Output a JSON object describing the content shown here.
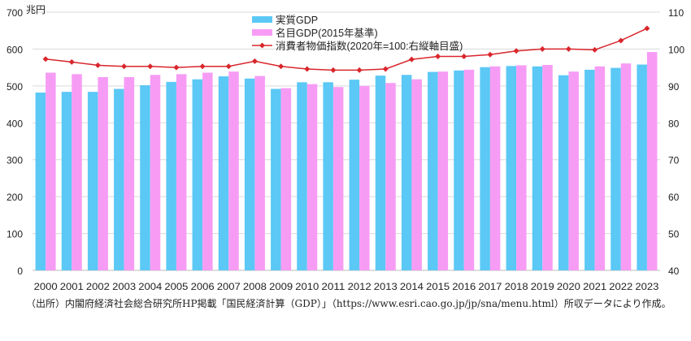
{
  "chart_data": {
    "type": "bar",
    "categories": [
      "2000",
      "2001",
      "2002",
      "2003",
      "2004",
      "2005",
      "2006",
      "2007",
      "2008",
      "2009",
      "2010",
      "2011",
      "2012",
      "2013",
      "2014",
      "2015",
      "2016",
      "2017",
      "2018",
      "2019",
      "2020",
      "2021",
      "2022",
      "2023"
    ],
    "series": [
      {
        "name": "実質GDP",
        "type": "bar",
        "axis": "left",
        "color": "#5bc8f5",
        "values": [
          482,
          484,
          484,
          492,
          502,
          511,
          518,
          526,
          520,
          492,
          510,
          510,
          517,
          528,
          530,
          538,
          542,
          551,
          554,
          553,
          529,
          544,
          549,
          558
        ]
      },
      {
        "name": "名目GDP(2015年基準)",
        "type": "bar",
        "axis": "left",
        "color": "#f79cf5",
        "values": [
          536,
          532,
          524,
          524,
          530,
          532,
          536,
          539,
          527,
          494,
          505,
          497,
          500,
          508,
          518,
          539,
          544,
          553,
          556,
          557,
          539,
          553,
          561,
          592
        ]
      },
      {
        "name": "消費者物価指数(2020年=100:右縦軸目盛)",
        "type": "line",
        "axis": "right",
        "color": "#d9262c",
        "values": [
          97.3,
          96.5,
          95.6,
          95.3,
          95.3,
          95.0,
          95.3,
          95.3,
          96.7,
          95.3,
          94.6,
          94.3,
          94.3,
          94.6,
          97.2,
          98.0,
          98.0,
          98.5,
          99.5,
          100.0,
          100.0,
          99.8,
          102.3,
          105.6
        ]
      }
    ],
    "ylabel": "兆円",
    "ylim": [
      0,
      700
    ],
    "yticks": [
      "0",
      "100",
      "200",
      "300",
      "400",
      "500",
      "600",
      "700"
    ],
    "y2lim": [
      40,
      110
    ],
    "y2ticks": [
      "40",
      "50",
      "60",
      "70",
      "80",
      "90",
      "100",
      "110"
    ],
    "grid": true,
    "legend_position": "top-center"
  },
  "footnote": "（出所）内閣府経済社会総合研究所HP掲載「国民経済計算（GDP）」（https://www.esri.cao.go.jp/jp/sna/menu.html）所収データにより作成。"
}
